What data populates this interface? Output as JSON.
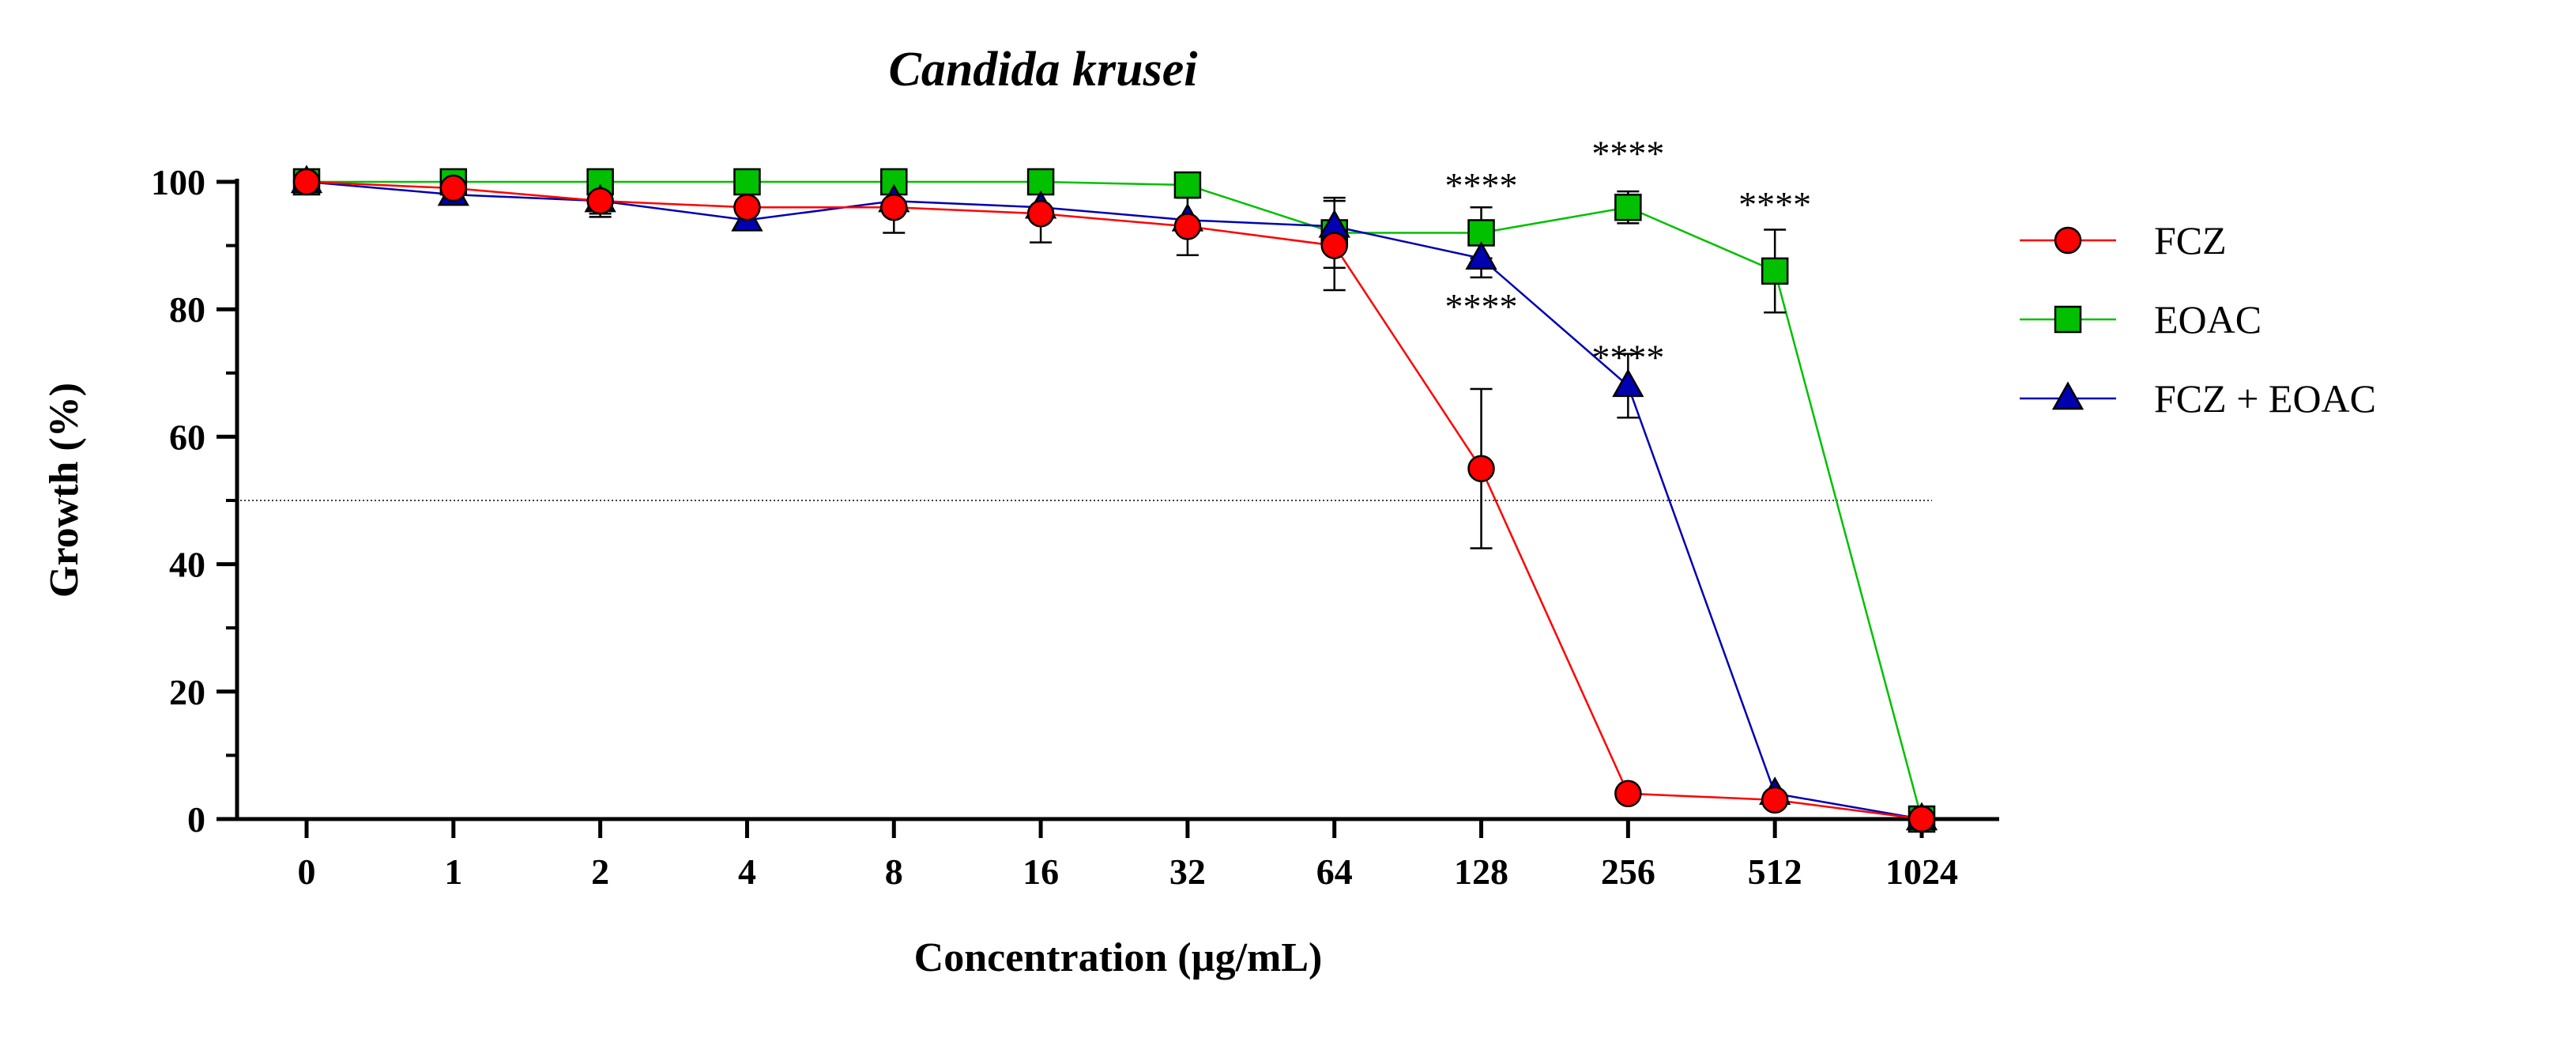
{
  "chart_data": {
    "type": "line",
    "title": "Candida krusei",
    "xlabel": "Concentration (µg/mL)",
    "ylabel": "Growth (%)",
    "categories": [
      "0",
      "1",
      "2",
      "4",
      "8",
      "16",
      "32",
      "64",
      "128",
      "256",
      "512",
      "1024"
    ],
    "ylim": [
      0,
      100
    ],
    "yticks": [
      0,
      20,
      40,
      60,
      80,
      100
    ],
    "reference_line": 50,
    "legend_position": "right",
    "series": [
      {
        "name": "FCZ",
        "color": "#ff0000",
        "marker": "circle",
        "values": [
          100,
          99,
          97,
          96,
          96,
          95,
          93,
          90,
          55,
          4,
          3,
          0
        ],
        "errors": [
          0,
          1,
          2.5,
          0,
          4,
          4.5,
          4.5,
          7,
          12.5,
          0,
          0,
          0
        ]
      },
      {
        "name": "EOAC",
        "color": "#00c000",
        "marker": "square",
        "values": [
          100,
          100,
          100,
          100,
          100,
          100,
          99.5,
          92,
          92,
          96,
          86,
          0
        ],
        "errors": [
          0,
          0,
          0,
          0,
          0,
          0,
          0,
          5.5,
          4,
          2.5,
          6.5,
          0
        ]
      },
      {
        "name": "FCZ + EOAC",
        "color": "#0000b0",
        "marker": "triangle",
        "values": [
          100,
          98,
          97,
          94,
          97,
          96,
          94,
          93,
          88,
          68,
          4,
          0
        ],
        "errors": [
          0,
          0,
          2,
          0,
          0,
          0,
          0,
          0,
          3,
          5,
          0,
          0
        ]
      }
    ],
    "annotations": [
      {
        "text": "****",
        "category": "128",
        "value": 100
      },
      {
        "text": "****",
        "category": "256",
        "value": 105
      },
      {
        "text": "****",
        "category": "512",
        "value": 97
      },
      {
        "text": "****",
        "category": "128",
        "value": 81
      },
      {
        "text": "****",
        "category": "256",
        "value": 73
      }
    ]
  }
}
